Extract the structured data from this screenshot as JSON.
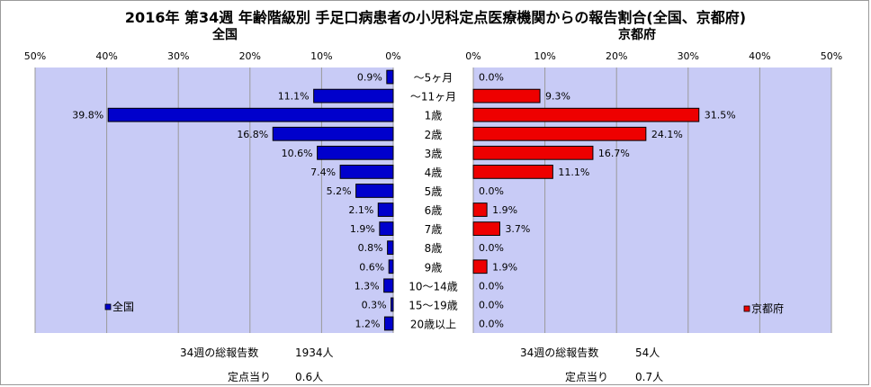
{
  "title": "2016年 第34週 年齢階級別 手足口病患者の小児科定点医療機関からの報告割合(全国、京都府)",
  "colors": {
    "plot_bg": "#c8cbf6",
    "national_bar": "#0000cc",
    "kyoto_bar": "#ee0000",
    "bar_outline": "#000000",
    "grid": "#9a9a9a"
  },
  "chart_data": [
    {
      "type": "bar",
      "orientation": "horizontal",
      "direction": "right-to-left",
      "subtitle": "全国",
      "legend": "全国",
      "legend_position": "bottom-left",
      "xlim": [
        0,
        50
      ],
      "ticks": [
        "0%",
        "10%",
        "20%",
        "30%",
        "40%",
        "50%"
      ],
      "grid": true,
      "categories": [
        "～5ヶ月",
        "～11ヶ月",
        "1歳",
        "2歳",
        "3歳",
        "4歳",
        "5歳",
        "6歳",
        "7歳",
        "8歳",
        "9歳",
        "10～14歳",
        "15～19歳",
        "20歳以上"
      ],
      "values": [
        0.9,
        11.1,
        39.8,
        16.8,
        10.6,
        7.4,
        5.2,
        2.1,
        1.9,
        0.8,
        0.6,
        1.3,
        0.3,
        1.2
      ],
      "labels": [
        "0.9%",
        "11.1%",
        "39.8%",
        "16.8%",
        "10.6%",
        "7.4%",
        "5.2%",
        "2.1%",
        "1.9%",
        "0.8%",
        "0.6%",
        "1.3%",
        "0.3%",
        "1.2%"
      ]
    },
    {
      "type": "bar",
      "orientation": "horizontal",
      "direction": "left-to-right",
      "subtitle": "京都府",
      "legend": "京都府",
      "legend_position": "bottom-right",
      "xlim": [
        0,
        50
      ],
      "ticks": [
        "0%",
        "10%",
        "20%",
        "30%",
        "40%",
        "50%"
      ],
      "grid": true,
      "categories": [
        "～5ヶ月",
        "～11ヶ月",
        "1歳",
        "2歳",
        "3歳",
        "4歳",
        "5歳",
        "6歳",
        "7歳",
        "8歳",
        "9歳",
        "10～14歳",
        "15～19歳",
        "20歳以上"
      ],
      "values": [
        0.0,
        9.3,
        31.5,
        24.1,
        16.7,
        11.1,
        0.0,
        1.9,
        3.7,
        0.0,
        1.9,
        0.0,
        0.0,
        0.0
      ],
      "labels": [
        "0.0%",
        "9.3%",
        "31.5%",
        "24.1%",
        "16.7%",
        "11.1%",
        "0.0%",
        "1.9%",
        "3.7%",
        "0.0%",
        "1.9%",
        "0.0%",
        "0.0%",
        "0.0%"
      ]
    }
  ],
  "summary": {
    "national": {
      "reports_label": "34週の総報告数",
      "reports_value": "1934人",
      "per_site_label": "定点当り",
      "per_site_value": "0.6人"
    },
    "kyoto": {
      "reports_label": "34週の総報告数",
      "reports_value": "54人",
      "per_site_label": "定点当り",
      "per_site_value": "0.7人"
    }
  }
}
